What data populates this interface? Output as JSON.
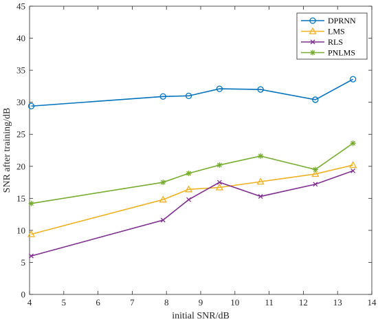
{
  "chart_data": {
    "type": "line",
    "title": "",
    "xlabel": "initial SNR/dB",
    "ylabel": "SNR after training/dB",
    "xlim": [
      4,
      14
    ],
    "ylim": [
      0,
      45
    ],
    "xticks": [
      4,
      5,
      6,
      7,
      8,
      9,
      10,
      11,
      12,
      13,
      14
    ],
    "yticks": [
      0,
      5,
      10,
      15,
      20,
      25,
      30,
      35,
      40,
      45
    ],
    "grid": false,
    "legend_position": "top-right",
    "x": [
      4.05,
      7.9,
      8.65,
      9.55,
      10.75,
      12.35,
      13.45
    ],
    "series": [
      {
        "name": "DPRNN",
        "color": "#0072BD",
        "marker": "circle",
        "values": [
          29.4,
          30.9,
          31.0,
          32.1,
          32.0,
          30.4,
          33.6
        ]
      },
      {
        "name": "LMS",
        "color": "#EDB120",
        "marker": "triangle",
        "values": [
          9.4,
          14.8,
          16.4,
          16.7,
          17.6,
          18.8,
          20.2
        ]
      },
      {
        "name": "RLS",
        "color": "#7E2F8E",
        "marker": "x",
        "values": [
          6.0,
          11.6,
          14.8,
          17.5,
          15.3,
          17.2,
          19.3
        ]
      },
      {
        "name": "PNLMS",
        "color": "#77AC30",
        "marker": "star",
        "values": [
          14.2,
          17.5,
          18.9,
          20.2,
          21.6,
          19.5,
          23.6
        ]
      }
    ]
  }
}
